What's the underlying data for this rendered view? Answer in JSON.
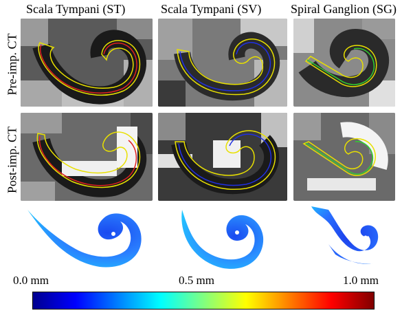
{
  "columns": [
    "Scala Tympani (ST)",
    "Scala Tympani (SV)",
    "Spiral Ganglion (SG)"
  ],
  "rows": [
    "Pre-imp. CT",
    "Post-imp. CT"
  ],
  "colorbar": {
    "min_label": "0.0 mm",
    "mid_label": "0.5 mm",
    "max_label": "1.0 mm",
    "colors": [
      "#00008f",
      "#0000ff",
      "#0080ff",
      "#00ffff",
      "#80ff80",
      "#ffff00",
      "#ff8000",
      "#ff0000",
      "#800000"
    ]
  },
  "contour_colors": {
    "st": [
      "#e8e000",
      "#e02020"
    ],
    "sv": [
      "#e8e000",
      "#2030e0"
    ],
    "sg": [
      "#e8e000",
      "#30d030"
    ]
  }
}
